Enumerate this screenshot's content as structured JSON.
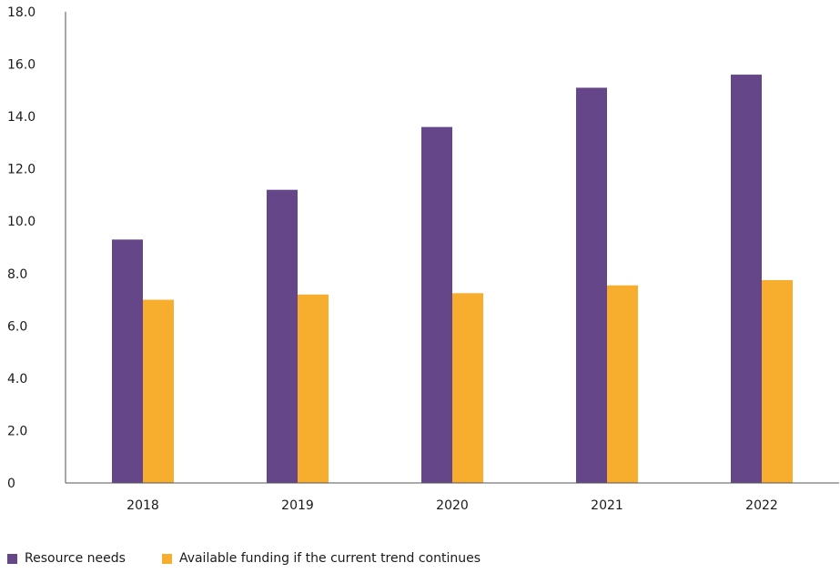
{
  "chart_data": {
    "type": "bar",
    "categories": [
      "2018",
      "2019",
      "2020",
      "2021",
      "2022"
    ],
    "series": [
      {
        "name": "Resource needs",
        "color": "#654689",
        "values": [
          9.3,
          11.2,
          13.6,
          15.1,
          15.6
        ]
      },
      {
        "name": "Available funding if the current trend continues",
        "color": "#F7AD2E",
        "values": [
          7.0,
          7.2,
          7.25,
          7.55,
          7.75
        ]
      }
    ],
    "ylim": [
      0,
      18
    ],
    "yticks": [
      "0",
      "2.0",
      "4.0",
      "6.0",
      "8.0",
      "10.0",
      "12.0",
      "14.0",
      "16.0",
      "18.0"
    ],
    "ytick_values": [
      0,
      2,
      4,
      6,
      8,
      10,
      12,
      14,
      16,
      18
    ],
    "grid": false,
    "legend_position": "bottom-left",
    "title": "",
    "xlabel": "",
    "ylabel": ""
  }
}
